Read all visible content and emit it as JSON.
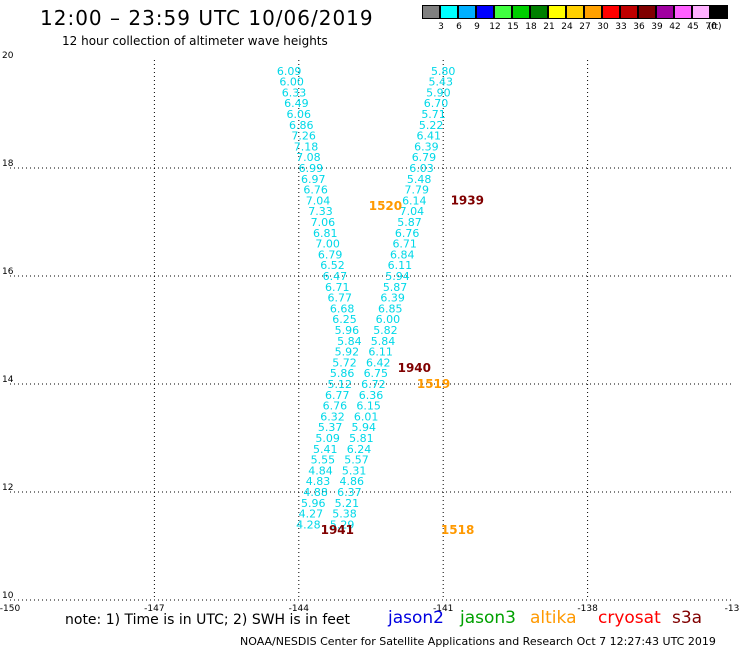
{
  "header": {
    "title": "12:00 – 23:59 UTC 10/06/2019",
    "subtitle": "12 hour collection of altimeter wave heights"
  },
  "colorbar": {
    "unit_label": "(ft)",
    "colors": [
      "#808080",
      "#00ffff",
      "#00b0ff",
      "#0000ff",
      "#40ff40",
      "#00d000",
      "#008000",
      "#ffff00",
      "#ffd000",
      "#ffa000",
      "#ff0000",
      "#c00000",
      "#800000",
      "#a000a0",
      "#ff60ff",
      "#ffb0ff",
      "#000000"
    ],
    "labels": [
      "3",
      "6",
      "9",
      "12",
      "15",
      "18",
      "21",
      "24",
      "27",
      "30",
      "33",
      "36",
      "39",
      "42",
      "45",
      "70"
    ]
  },
  "note": "note: 1) Time is in UTC; 2) SWH is in feet",
  "legend": [
    {
      "label": "jason2",
      "color": "#0000e0"
    },
    {
      "label": "jason3",
      "color": "#00a000"
    },
    {
      "label": "altika",
      "color": "#ff9900"
    },
    {
      "label": "cryosat",
      "color": "#ff0000"
    },
    {
      "label": "s3a",
      "color": "#800000"
    }
  ],
  "footer": "NOAA/NESDIS Center for Satellite Applications and Research    Oct  7 12:27:43 UTC 2019",
  "chart_data": {
    "type": "scatter",
    "xlim": [
      -150,
      -135
    ],
    "ylim": [
      10,
      20
    ],
    "x_ticks": [
      "-150",
      "-147",
      "-144",
      "-141",
      "-138",
      "-13"
    ],
    "y_ticks": [
      "10",
      "12",
      "14",
      "16",
      "18",
      "20"
    ],
    "grid": true,
    "swh_color": "#00d8e8",
    "time_label_colors": {
      "altika": "#ff9900",
      "s3a": "#800000"
    },
    "track_a": [
      {
        "lon": -144.2,
        "lat": 19.8,
        "v": "6.09"
      },
      {
        "lon": -144.15,
        "lat": 19.6,
        "v": "6.00"
      },
      {
        "lon": -144.1,
        "lat": 19.4,
        "v": "6.33"
      },
      {
        "lon": -144.05,
        "lat": 19.2,
        "v": "6.49"
      },
      {
        "lon": -144.0,
        "lat": 19.0,
        "v": "6.06"
      },
      {
        "lon": -143.95,
        "lat": 18.8,
        "v": "6.86"
      },
      {
        "lon": -143.9,
        "lat": 18.6,
        "v": "7.26"
      },
      {
        "lon": -143.85,
        "lat": 18.4,
        "v": "7.18"
      },
      {
        "lon": -143.8,
        "lat": 18.2,
        "v": "7.08"
      },
      {
        "lon": -143.75,
        "lat": 18.0,
        "v": "6.99"
      },
      {
        "lon": -143.7,
        "lat": 17.8,
        "v": "6.97"
      },
      {
        "lon": -143.65,
        "lat": 17.6,
        "v": "6.76"
      },
      {
        "lon": -143.6,
        "lat": 17.4,
        "v": "7.04"
      },
      {
        "lon": -143.55,
        "lat": 17.2,
        "v": "7.33"
      },
      {
        "lon": -143.5,
        "lat": 17.0,
        "v": "7.06"
      },
      {
        "lon": -143.45,
        "lat": 16.8,
        "v": "6.81"
      },
      {
        "lon": -143.4,
        "lat": 16.6,
        "v": "7.00"
      },
      {
        "lon": -143.35,
        "lat": 16.4,
        "v": "6.79"
      },
      {
        "lon": -143.3,
        "lat": 16.2,
        "v": "6.52"
      },
      {
        "lon": -143.25,
        "lat": 16.0,
        "v": "6.47"
      },
      {
        "lon": -143.2,
        "lat": 15.8,
        "v": "6.71"
      },
      {
        "lon": -143.15,
        "lat": 15.6,
        "v": "6.77"
      },
      {
        "lon": -143.1,
        "lat": 15.4,
        "v": "6.68"
      },
      {
        "lon": -143.05,
        "lat": 15.2,
        "v": "6.25"
      },
      {
        "lon": -143.0,
        "lat": 15.0,
        "v": "5.96"
      },
      {
        "lon": -142.95,
        "lat": 14.8,
        "v": "5.84"
      },
      {
        "lon": -143.0,
        "lat": 14.6,
        "v": "5.92"
      },
      {
        "lon": -143.05,
        "lat": 14.4,
        "v": "5.72"
      },
      {
        "lon": -143.1,
        "lat": 14.2,
        "v": "5.86"
      },
      {
        "lon": -143.15,
        "lat": 14.0,
        "v": "5.12"
      },
      {
        "lon": -143.2,
        "lat": 13.8,
        "v": "6.77"
      },
      {
        "lon": -143.25,
        "lat": 13.6,
        "v": "6.76"
      },
      {
        "lon": -143.3,
        "lat": 13.4,
        "v": "6.32"
      },
      {
        "lon": -143.35,
        "lat": 13.2,
        "v": "5.37"
      },
      {
        "lon": -143.4,
        "lat": 13.0,
        "v": "5.09"
      },
      {
        "lon": -143.45,
        "lat": 12.8,
        "v": "5.41"
      },
      {
        "lon": -143.5,
        "lat": 12.6,
        "v": "5.55"
      },
      {
        "lon": -143.55,
        "lat": 12.4,
        "v": "4.84"
      },
      {
        "lon": -143.6,
        "lat": 12.2,
        "v": "4.83"
      },
      {
        "lon": -143.65,
        "lat": 12.0,
        "v": "4.88"
      },
      {
        "lon": -143.7,
        "lat": 11.8,
        "v": "5.96"
      },
      {
        "lon": -143.75,
        "lat": 11.6,
        "v": "4.27"
      },
      {
        "lon": -143.8,
        "lat": 11.4,
        "v": "4.28"
      }
    ],
    "track_b": [
      {
        "lon": -141.0,
        "lat": 19.8,
        "v": "5.80"
      },
      {
        "lon": -141.05,
        "lat": 19.6,
        "v": "5.43"
      },
      {
        "lon": -141.1,
        "lat": 19.4,
        "v": "5.90"
      },
      {
        "lon": -141.15,
        "lat": 19.2,
        "v": "6.70"
      },
      {
        "lon": -141.2,
        "lat": 19.0,
        "v": "5.71"
      },
      {
        "lon": -141.25,
        "lat": 18.8,
        "v": "5.22"
      },
      {
        "lon": -141.3,
        "lat": 18.6,
        "v": "6.41"
      },
      {
        "lon": -141.35,
        "lat": 18.4,
        "v": "6.39"
      },
      {
        "lon": -141.4,
        "lat": 18.2,
        "v": "6.79"
      },
      {
        "lon": -141.45,
        "lat": 18.0,
        "v": "6.03"
      },
      {
        "lon": -141.5,
        "lat": 17.8,
        "v": "5.48"
      },
      {
        "lon": -141.55,
        "lat": 17.6,
        "v": "7.79"
      },
      {
        "lon": -141.6,
        "lat": 17.4,
        "v": "6.14"
      },
      {
        "lon": -141.65,
        "lat": 17.2,
        "v": "7.04"
      },
      {
        "lon": -141.7,
        "lat": 17.0,
        "v": "5.87"
      },
      {
        "lon": -141.75,
        "lat": 16.8,
        "v": "6.76"
      },
      {
        "lon": -141.8,
        "lat": 16.6,
        "v": "6.71"
      },
      {
        "lon": -141.85,
        "lat": 16.4,
        "v": "6.84"
      },
      {
        "lon": -141.9,
        "lat": 16.2,
        "v": "6.11"
      },
      {
        "lon": -141.95,
        "lat": 16.0,
        "v": "5.94"
      },
      {
        "lon": -142.0,
        "lat": 15.8,
        "v": "5.87"
      },
      {
        "lon": -142.05,
        "lat": 15.6,
        "v": "6.39"
      },
      {
        "lon": -142.1,
        "lat": 15.4,
        "v": "6.85"
      },
      {
        "lon": -142.15,
        "lat": 15.2,
        "v": "6.00"
      },
      {
        "lon": -142.2,
        "lat": 15.0,
        "v": "5.82"
      },
      {
        "lon": -142.25,
        "lat": 14.8,
        "v": "5.84"
      },
      {
        "lon": -142.3,
        "lat": 14.6,
        "v": "6.11"
      },
      {
        "lon": -142.35,
        "lat": 14.4,
        "v": "6.42"
      },
      {
        "lon": -142.4,
        "lat": 14.2,
        "v": "6.75"
      },
      {
        "lon": -142.45,
        "lat": 14.0,
        "v": "6.72"
      },
      {
        "lon": -142.5,
        "lat": 13.8,
        "v": "6.36"
      },
      {
        "lon": -142.55,
        "lat": 13.6,
        "v": "6.15"
      },
      {
        "lon": -142.6,
        "lat": 13.4,
        "v": "6.01"
      },
      {
        "lon": -142.65,
        "lat": 13.2,
        "v": "5.94"
      },
      {
        "lon": -142.7,
        "lat": 13.0,
        "v": "5.81"
      },
      {
        "lon": -142.75,
        "lat": 12.8,
        "v": "6.24"
      },
      {
        "lon": -142.8,
        "lat": 12.6,
        "v": "5.57"
      },
      {
        "lon": -142.85,
        "lat": 12.4,
        "v": "5.31"
      },
      {
        "lon": -142.9,
        "lat": 12.2,
        "v": "4.86"
      },
      {
        "lon": -142.95,
        "lat": 12.0,
        "v": "6.37"
      },
      {
        "lon": -143.0,
        "lat": 11.8,
        "v": "5.21"
      },
      {
        "lon": -143.05,
        "lat": 11.6,
        "v": "5.38"
      },
      {
        "lon": -143.1,
        "lat": 11.4,
        "v": "5.29"
      }
    ],
    "time_labels": [
      {
        "text": "1939",
        "sat": "s3a",
        "lon": -140.5,
        "lat": 17.4
      },
      {
        "text": "1520",
        "sat": "altika",
        "lon": -142.2,
        "lat": 17.3
      },
      {
        "text": "1940",
        "sat": "s3a",
        "lon": -141.6,
        "lat": 14.3
      },
      {
        "text": "1519",
        "sat": "altika",
        "lon": -141.2,
        "lat": 14.0
      },
      {
        "text": "1941",
        "sat": "s3a",
        "lon": -143.2,
        "lat": 11.3
      },
      {
        "text": "1518",
        "sat": "altika",
        "lon": -140.7,
        "lat": 11.3
      }
    ]
  }
}
